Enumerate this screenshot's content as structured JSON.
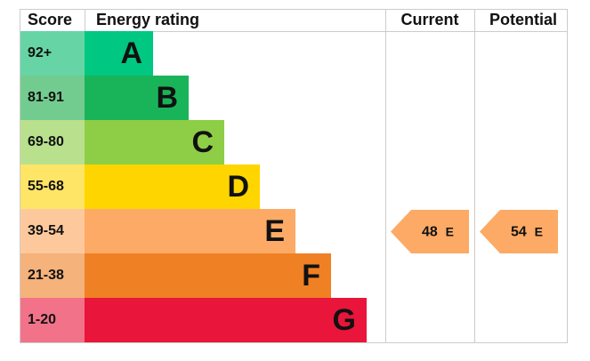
{
  "header": {
    "score": "Score",
    "rating": "Energy rating",
    "current": "Current",
    "potential": "Potential"
  },
  "bands": [
    {
      "score": "92+",
      "letter": "A",
      "color": "#00c781",
      "light": "#66d4a5"
    },
    {
      "score": "81-91",
      "letter": "B",
      "color": "#19b459",
      "light": "#73cc8f"
    },
    {
      "score": "69-80",
      "letter": "C",
      "color": "#8dce46",
      "light": "#b9e08d"
    },
    {
      "score": "55-68",
      "letter": "D",
      "color": "#ffd500",
      "light": "#ffe566"
    },
    {
      "score": "39-54",
      "letter": "E",
      "color": "#fcaa65",
      "light": "#fdc99c"
    },
    {
      "score": "21-38",
      "letter": "F",
      "color": "#ef8023",
      "light": "#f5b27b"
    },
    {
      "score": "1-20",
      "letter": "G",
      "color": "#e9153b",
      "light": "#f27389"
    }
  ],
  "current": {
    "score": 48,
    "rating": "E"
  },
  "potential": {
    "score": 54,
    "rating": "E"
  }
}
